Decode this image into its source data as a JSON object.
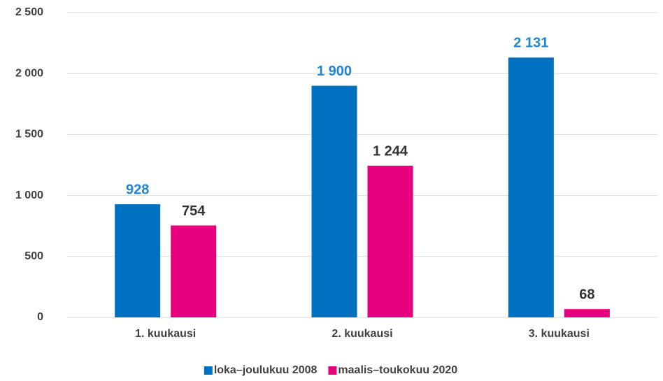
{
  "chart_data": {
    "type": "bar",
    "categories": [
      "1. kuukausi",
      "2. kuukausi",
      "3. kuukausi"
    ],
    "series": [
      {
        "name": "loka–joulukuu 2008",
        "color": "#0070c0",
        "label_color": "#1f86d6",
        "values": [
          928,
          1900,
          2131
        ],
        "value_labels": [
          "928",
          "1 900",
          "2 131"
        ]
      },
      {
        "name": "maalis–toukokuu 2020",
        "color": "#e6007e",
        "label_color": "#333333",
        "values": [
          754,
          1244,
          68
        ],
        "value_labels": [
          "754",
          "1 244",
          "68"
        ]
      }
    ],
    "ylim": [
      0,
      2500
    ],
    "yticks": [
      0,
      500,
      {
        "value": 1000,
        "label": "1 000"
      },
      {
        "value": 1500,
        "label": "1 500"
      },
      {
        "value": 2000,
        "label": "2 000"
      },
      {
        "value": 2500,
        "label": "2 500"
      }
    ],
    "grid": true,
    "legend": "bottom"
  }
}
